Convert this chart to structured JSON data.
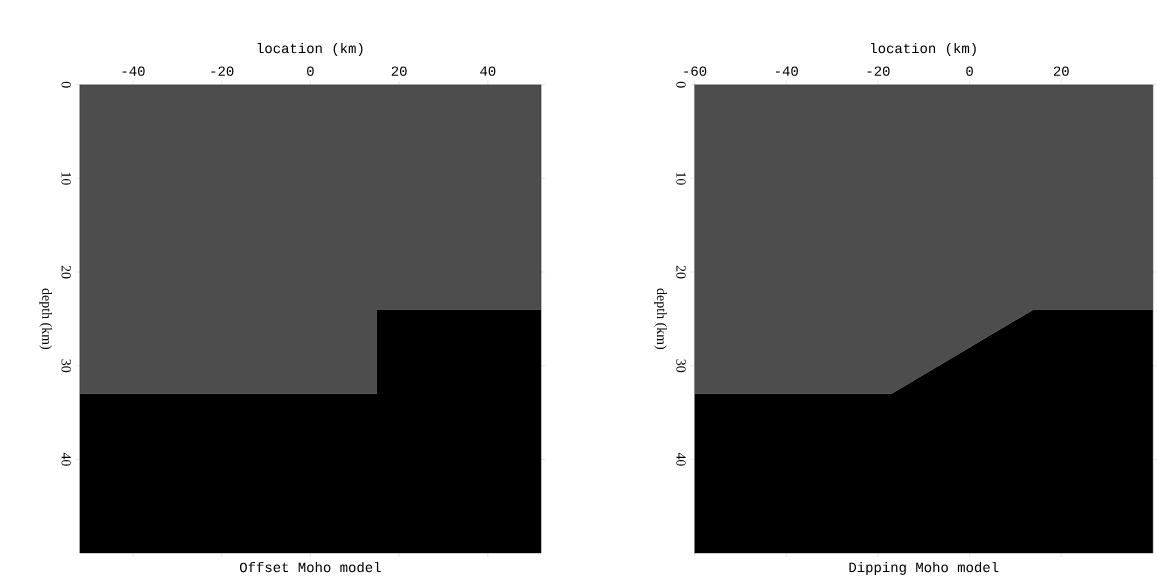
{
  "chart_data": [
    {
      "type": "area",
      "title": "Offset Moho model",
      "xlabel": "location (km)",
      "ylabel": "depth (km)",
      "stacked": true,
      "x": [
        -52,
        15,
        15,
        52
      ],
      "series": [
        {
          "color": "#4d4d4d",
          "values": [
            33,
            33,
            24,
            24
          ]
        },
        {
          "color": "#000000",
          "values": [
            17,
            17,
            26,
            26
          ]
        }
      ],
      "xlim": [
        -52,
        52
      ],
      "ylim": [
        50,
        0
      ],
      "xticks": [
        -40,
        -20,
        0,
        20,
        40
      ],
      "yticks": [
        0,
        10,
        20,
        30,
        40
      ]
    },
    {
      "type": "area",
      "title": "Dipping Moho model",
      "xlabel": "location (km)",
      "ylabel": "depth (km)",
      "stacked": true,
      "x": [
        -60,
        -17,
        14,
        40
      ],
      "series": [
        {
          "color": "#4d4d4d",
          "values": [
            33,
            33,
            24,
            24
          ]
        },
        {
          "color": "#000000",
          "values": [
            17,
            17,
            26,
            26
          ]
        }
      ],
      "xlim": [
        -60,
        40
      ],
      "ylim": [
        50,
        0
      ],
      "xticks": [
        -60,
        -40,
        -20,
        0,
        20
      ],
      "yticks": [
        0,
        10,
        20,
        30,
        40
      ]
    }
  ]
}
